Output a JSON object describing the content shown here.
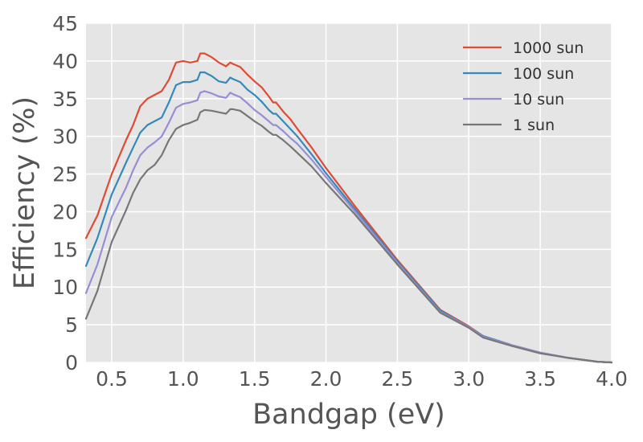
{
  "chart_data": {
    "type": "line",
    "xlabel": "Bandgap (eV)",
    "ylabel": "Efficiency (%)",
    "xlim": [
      0.32,
      4.0
    ],
    "ylim": [
      0,
      45
    ],
    "xticks": [
      0.5,
      1.0,
      1.5,
      2.0,
      2.5,
      3.0,
      3.5,
      4.0
    ],
    "xtick_labels": [
      "0.5",
      "1.0",
      "1.5",
      "2.0",
      "2.5",
      "3.0",
      "3.5",
      "4.0"
    ],
    "yticks": [
      0,
      5,
      10,
      15,
      20,
      25,
      30,
      35,
      40,
      45
    ],
    "ytick_labels": [
      "0",
      "5",
      "10",
      "15",
      "20",
      "25",
      "30",
      "35",
      "40",
      "45"
    ],
    "grid": true,
    "background": "#e5e5e5",
    "grid_color": "#ffffff",
    "legend_position": "top-right",
    "series": [
      {
        "name": "1000 sun",
        "color": "#e24a33",
        "x": [
          0.32,
          0.4,
          0.5,
          0.6,
          0.65,
          0.7,
          0.75,
          0.8,
          0.85,
          0.9,
          0.95,
          1.0,
          1.05,
          1.1,
          1.12,
          1.15,
          1.2,
          1.25,
          1.3,
          1.33,
          1.35,
          1.4,
          1.45,
          1.5,
          1.55,
          1.6,
          1.63,
          1.65,
          1.7,
          1.75,
          1.8,
          1.9,
          2.0,
          2.2,
          2.5,
          2.8,
          3.0,
          3.1,
          3.3,
          3.5,
          3.7,
          3.9,
          4.0
        ],
        "y": [
          16.5,
          19.5,
          25.0,
          29.5,
          31.5,
          34.0,
          35.0,
          35.5,
          36.0,
          37.5,
          39.8,
          40.0,
          39.8,
          40.0,
          41.0,
          41.0,
          40.5,
          39.8,
          39.3,
          39.8,
          39.6,
          39.2,
          38.2,
          37.3,
          36.5,
          35.3,
          34.5,
          34.5,
          33.3,
          32.3,
          31.0,
          28.5,
          25.8,
          20.8,
          13.6,
          7.0,
          4.8,
          3.5,
          2.3,
          1.3,
          0.6,
          0.1,
          0.0
        ]
      },
      {
        "name": "100 sun",
        "color": "#348abd",
        "x": [
          0.32,
          0.4,
          0.5,
          0.6,
          0.65,
          0.7,
          0.75,
          0.8,
          0.85,
          0.9,
          0.95,
          1.0,
          1.05,
          1.1,
          1.12,
          1.15,
          1.2,
          1.25,
          1.3,
          1.33,
          1.35,
          1.4,
          1.45,
          1.5,
          1.55,
          1.6,
          1.63,
          1.65,
          1.7,
          1.75,
          1.8,
          1.9,
          2.0,
          2.2,
          2.5,
          2.8,
          3.0,
          3.1,
          3.3,
          3.5,
          3.7,
          3.9,
          4.0
        ],
        "y": [
          12.8,
          16.5,
          22.3,
          26.5,
          28.5,
          30.5,
          31.5,
          32.0,
          32.5,
          34.5,
          36.8,
          37.2,
          37.2,
          37.5,
          38.5,
          38.5,
          38.0,
          37.3,
          37.1,
          37.8,
          37.6,
          37.2,
          36.2,
          35.5,
          34.6,
          33.5,
          33.0,
          33.0,
          32.0,
          31.0,
          30.0,
          27.6,
          25.1,
          20.4,
          13.4,
          6.9,
          4.7,
          3.5,
          2.3,
          1.3,
          0.6,
          0.1,
          0.0
        ]
      },
      {
        "name": "10 sun",
        "color": "#988ed5",
        "x": [
          0.32,
          0.4,
          0.5,
          0.6,
          0.65,
          0.7,
          0.75,
          0.8,
          0.85,
          0.9,
          0.95,
          1.0,
          1.05,
          1.1,
          1.12,
          1.15,
          1.2,
          1.25,
          1.3,
          1.33,
          1.35,
          1.4,
          1.45,
          1.5,
          1.55,
          1.6,
          1.63,
          1.65,
          1.7,
          1.75,
          1.8,
          1.9,
          2.0,
          2.2,
          2.5,
          2.8,
          3.0,
          3.1,
          3.3,
          3.5,
          3.7,
          3.9,
          4.0
        ],
        "y": [
          9.2,
          13.0,
          19.3,
          23.2,
          25.5,
          27.5,
          28.5,
          29.2,
          30.0,
          31.8,
          33.8,
          34.3,
          34.5,
          34.8,
          35.8,
          36.0,
          35.7,
          35.3,
          35.1,
          35.8,
          35.6,
          35.2,
          34.4,
          33.5,
          32.8,
          32.0,
          31.5,
          31.5,
          30.7,
          29.8,
          29.0,
          26.9,
          24.6,
          20.1,
          13.2,
          6.7,
          4.7,
          3.4,
          2.3,
          1.3,
          0.6,
          0.1,
          0.0
        ]
      },
      {
        "name": "1 sun",
        "color": "#777777",
        "x": [
          0.32,
          0.4,
          0.5,
          0.6,
          0.65,
          0.7,
          0.75,
          0.8,
          0.85,
          0.9,
          0.95,
          1.0,
          1.05,
          1.1,
          1.12,
          1.15,
          1.2,
          1.25,
          1.3,
          1.33,
          1.35,
          1.4,
          1.45,
          1.5,
          1.55,
          1.6,
          1.63,
          1.65,
          1.7,
          1.75,
          1.8,
          1.9,
          2.0,
          2.2,
          2.5,
          2.8,
          3.0,
          3.1,
          3.3,
          3.5,
          3.7,
          3.9,
          4.0
        ],
        "y": [
          5.8,
          9.5,
          16.0,
          20.2,
          22.5,
          24.3,
          25.5,
          26.2,
          27.5,
          29.5,
          31.0,
          31.5,
          31.8,
          32.2,
          33.2,
          33.5,
          33.4,
          33.2,
          33.0,
          33.6,
          33.6,
          33.4,
          32.7,
          32.0,
          31.4,
          30.6,
          30.2,
          30.2,
          29.5,
          28.7,
          27.8,
          26.0,
          23.8,
          19.7,
          13.0,
          6.6,
          4.6,
          3.3,
          2.2,
          1.2,
          0.6,
          0.1,
          0.0
        ]
      }
    ]
  }
}
